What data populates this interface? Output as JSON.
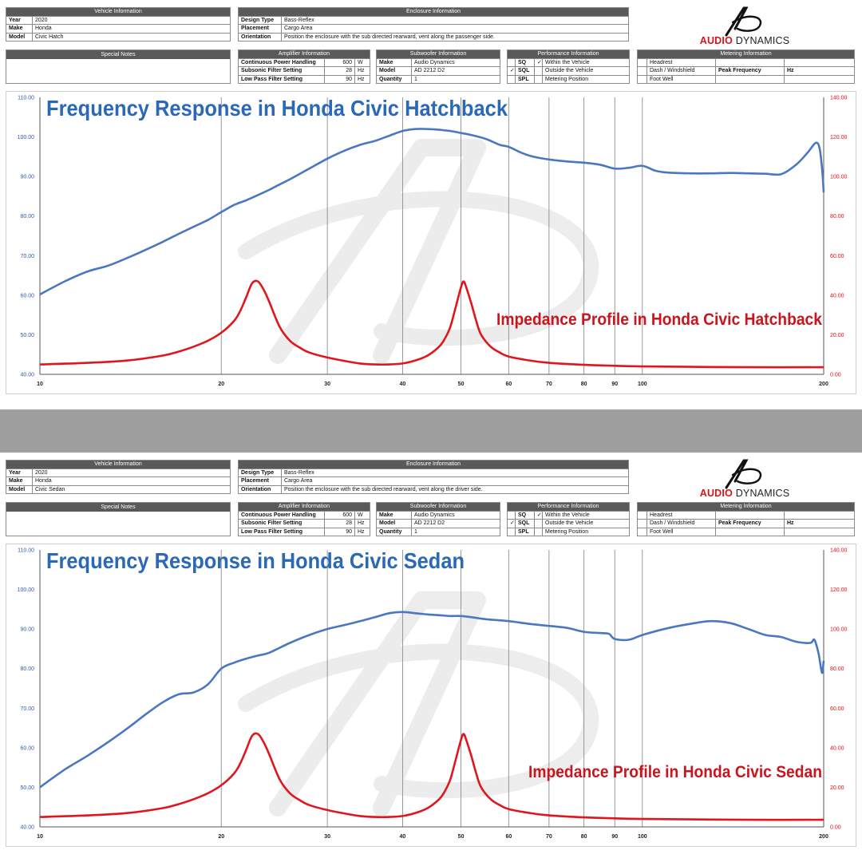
{
  "brand": {
    "logo_word_a": "AUDIO",
    "logo_word_b": "DYNAMICS",
    "logo_icon": "ad-monogram-icon"
  },
  "colors": {
    "header_bg": "#595959",
    "fr_line": "#4a78c0",
    "imp_line": "#e0161c",
    "title_blue": "#2b68b6",
    "title_red": "#c9151d",
    "left_axis": "#2b5ea5",
    "right_axis": "#d7141a"
  },
  "panels": [
    {
      "vehicle": {
        "header": "Vehicle Information",
        "rows": [
          {
            "k": "Year",
            "v": "2020"
          },
          {
            "k": "Make",
            "v": "Honda"
          },
          {
            "k": "Model",
            "v": "Civic Hatch"
          }
        ]
      },
      "enclosure": {
        "header": "Enclosure Information",
        "rows": [
          {
            "k": "Design Type",
            "v": "Bass-Reflex"
          },
          {
            "k": "Placement",
            "v": "Cargo Area"
          },
          {
            "k": "Orientation",
            "v": "Position the enclosure with the sub directed rearward, vent along the passenger side."
          }
        ]
      },
      "notes": {
        "header": "Special Notes"
      },
      "amplifier": {
        "header": "Amplifier Information",
        "rows": [
          {
            "k": "Continuous Power Handling",
            "v": "600",
            "u": "W"
          },
          {
            "k": "Subsonic Filter Setting",
            "v": "28",
            "u": "Hz"
          },
          {
            "k": "Low Pass Filter Setting",
            "v": "90",
            "u": "Hz"
          }
        ]
      },
      "subwoofer": {
        "header": "Subwoofer Information",
        "rows": [
          {
            "k": "Make",
            "v": "Audio Dynamics"
          },
          {
            "k": "Model",
            "v": "AD 2212 D2"
          },
          {
            "k": "Quantity",
            "v": "1"
          }
        ]
      },
      "performance": {
        "header": "Performance Information",
        "rows": [
          {
            "k": "SQ",
            "c": "✓",
            "v": "Within the Vehicle"
          },
          {
            "m": "✓",
            "k": "SQL",
            "c": "",
            "v": "Outside the Vehicle"
          },
          {
            "k": "SPL",
            "c": "",
            "v": "Metering Position"
          }
        ]
      },
      "metering": {
        "header": "Metering Information",
        "rows": [
          {
            "k": "Headrest"
          },
          {
            "k": "Dash / Windshield",
            "pf": "Peak Frequency",
            "u": "Hz"
          },
          {
            "k": "Foot Well"
          }
        ]
      },
      "chart_data": {
        "type": "line",
        "title": "Frequency Response in Honda Civic Hatchback",
        "annotation": "Impedance Profile in Honda Civic Hatchback",
        "x_scale": "log",
        "xlim": [
          10,
          200
        ],
        "x_ticks": [
          "10",
          "20",
          "30",
          "40",
          "50",
          "60",
          "70",
          "80",
          "90",
          "100",
          "200"
        ],
        "ylim_left": [
          40,
          110
        ],
        "y_ticks_left": [
          "40.00",
          "50.00",
          "60.00",
          "70.00",
          "80.00",
          "90.00",
          "100.00",
          "110.00"
        ],
        "ylim_right": [
          0,
          140
        ],
        "y_ticks_right": [
          "0.00",
          "20.00",
          "40.00",
          "60.00",
          "80.00",
          "100.00",
          "120.00",
          "140.00"
        ],
        "grid": "vertical",
        "series": [
          {
            "axis": "left",
            "x": [
              10,
              11,
              12,
              13,
              14,
              15,
              16,
              17,
              18,
              19,
              20,
              21,
              22,
              23,
              24,
              25,
              26,
              28,
              30,
              32,
              34,
              36,
              38,
              40,
              42,
              44,
              46,
              48,
              50,
              52,
              55,
              58,
              60,
              63,
              66,
              70,
              75,
              80,
              85,
              90,
              95,
              100,
              105,
              110,
              120,
              130,
              140,
              150,
              160,
              170,
              180,
              188,
              194,
              197,
              199,
              200
            ],
            "y": [
              60.2,
              63.5,
              66,
              67.5,
              69.5,
              71.5,
              73.5,
              75.5,
              77.3,
              79,
              81,
              82.8,
              84,
              85.3,
              86.6,
              88,
              89.3,
              92,
              94.5,
              96.5,
              98,
              99,
              100.3,
              101.5,
              102,
              102,
              101.8,
              101.5,
              101,
              100.5,
              99.5,
              98,
              97.5,
              96,
              95,
              94.3,
              93.8,
              93.5,
              93,
              92,
              92.2,
              92.7,
              91.5,
              91,
              90.8,
              90.8,
              90.9,
              90.8,
              90.7,
              90.6,
              93,
              96,
              98.5,
              97,
              91,
              86
            ]
          },
          {
            "axis": "right",
            "x": [
              10,
              12,
              14,
              16,
              17,
              18,
              19,
              20,
              21,
              21.5,
              22,
              22.5,
              23,
              23.5,
              24,
              25,
              26,
              27,
              28,
              30,
              32,
              34,
              36,
              38,
              40,
              42,
              44,
              46,
              47,
              48,
              49,
              50,
              50.5,
              51,
              52,
              53,
              54,
              56,
              58,
              60,
              65,
              70,
              80,
              90,
              100,
              120,
              150,
              200
            ],
            "y": [
              5,
              5.8,
              7,
              9.5,
              11.5,
              14,
              17,
              21,
              27,
              32,
              39,
              46,
              47,
              43,
              37,
              24,
              17,
              13.5,
              11,
              8.5,
              6.8,
              5.5,
              5,
              5,
              5.5,
              7,
              9.5,
              14,
              18,
              24,
              34,
              44,
              47,
              44,
              36,
              27,
              20,
              14,
              11,
              9,
              7,
              5.8,
              4.8,
              4.3,
              4,
              3.8,
              3.6,
              3.6
            ]
          }
        ]
      }
    },
    {
      "vehicle": {
        "header": "Vehicle Information",
        "rows": [
          {
            "k": "Year",
            "v": "2020"
          },
          {
            "k": "Make",
            "v": "Honda"
          },
          {
            "k": "Model",
            "v": "Civic Sedan"
          }
        ]
      },
      "enclosure": {
        "header": "Enclosure Information",
        "rows": [
          {
            "k": "Design Type",
            "v": "Bass-Reflex"
          },
          {
            "k": "Placement",
            "v": "Cargo Area"
          },
          {
            "k": "Orientation",
            "v": "Position the enclosure with the sub directed rearward, vent along the driver side."
          }
        ]
      },
      "notes": {
        "header": "Special Notes"
      },
      "amplifier": {
        "header": "Amplifier Information",
        "rows": [
          {
            "k": "Continuous Power Handling",
            "v": "600",
            "u": "W"
          },
          {
            "k": "Subsonic Filter Setting",
            "v": "28",
            "u": "Hz"
          },
          {
            "k": "Low Pass Filter Setting",
            "v": "90",
            "u": "Hz"
          }
        ]
      },
      "subwoofer": {
        "header": "Subwoofer Information",
        "rows": [
          {
            "k": "Make",
            "v": "Audio Dynamics"
          },
          {
            "k": "Model",
            "v": "AD 2212 D2"
          },
          {
            "k": "Quantity",
            "v": "1"
          }
        ]
      },
      "performance": {
        "header": "Performance Information",
        "rows": [
          {
            "k": "SQ",
            "c": "✓",
            "v": "Within the Vehicle"
          },
          {
            "m": "✓",
            "k": "SQL",
            "c": "",
            "v": "Outside the Vehicle"
          },
          {
            "k": "SPL",
            "c": "",
            "v": "Metering Position"
          }
        ]
      },
      "metering": {
        "header": "Metering Information",
        "rows": [
          {
            "k": "Headrest"
          },
          {
            "k": "Dash / Windshield",
            "pf": "Peak Frequency",
            "u": "Hz"
          },
          {
            "k": "Foot Well"
          }
        ]
      },
      "chart_data": {
        "type": "line",
        "title": "Frequency Response in Honda Civic Sedan",
        "annotation": "Impedance Profile in Honda Civic Sedan",
        "x_scale": "log",
        "xlim": [
          10,
          200
        ],
        "x_ticks": [
          "10",
          "20",
          "30",
          "40",
          "50",
          "60",
          "70",
          "80",
          "90",
          "100",
          "200"
        ],
        "ylim_left": [
          40,
          110
        ],
        "y_ticks_left": [
          "40.00",
          "50.00",
          "60.00",
          "70.00",
          "80.00",
          "90.00",
          "100.00",
          "110.00"
        ],
        "ylim_right": [
          0,
          140
        ],
        "y_ticks_right": [
          "0.00",
          "20.00",
          "40.00",
          "60.00",
          "80.00",
          "100.00",
          "120.00",
          "140.00"
        ],
        "grid": "vertical",
        "series": [
          {
            "axis": "left",
            "x": [
              10,
              11,
              12,
              13,
              14,
              15,
              16,
              17,
              18,
              19,
              20,
              21,
              22,
              23,
              24,
              26,
              28,
              30,
              32,
              34,
              36,
              38,
              40,
              42,
              44,
              46,
              48,
              50,
              52,
              55,
              60,
              65,
              70,
              75,
              80,
              85,
              88,
              90,
              95,
              100,
              110,
              120,
              130,
              140,
              150,
              160,
              170,
              180,
              190,
              193,
              196,
              198,
              199,
              200
            ],
            "y": [
              50,
              54.5,
              58,
              61.5,
              65,
              68.5,
              71.5,
              73.5,
              74,
              76,
              80,
              81.5,
              82.5,
              83.3,
              84,
              86.5,
              88.5,
              90,
              91,
              92,
              93,
              94,
              94.3,
              94,
              93.7,
              93.5,
              93.3,
              93.3,
              93,
              92.5,
              92,
              91.3,
              90.8,
              90.3,
              89.3,
              89,
              88.8,
              87.5,
              87.3,
              88.5,
              90.2,
              91.3,
              92,
              91.5,
              90,
              88.5,
              88,
              86.8,
              86.5,
              87.3,
              84,
              80,
              79,
              82
            ]
          },
          {
            "axis": "right",
            "x": [
              10,
              12,
              14,
              16,
              17,
              18,
              19,
              20,
              21,
              21.5,
              22,
              22.5,
              23,
              23.5,
              24,
              25,
              26,
              27,
              28,
              30,
              32,
              34,
              36,
              38,
              40,
              42,
              44,
              46,
              47,
              48,
              49,
              50,
              50.5,
              51,
              52,
              53,
              54,
              56,
              58,
              60,
              65,
              70,
              80,
              90,
              100,
              120,
              150,
              200
            ],
            "y": [
              5,
              5.8,
              7,
              9.5,
              11.5,
              14,
              17,
              21,
              27,
              32,
              39,
              46,
              47,
              43,
              37,
              24,
              17,
              13.5,
              11,
              8.5,
              6.8,
              5.5,
              5,
              5,
              5.5,
              7,
              9.5,
              14,
              18,
              24,
              34,
              44,
              47,
              44,
              36,
              27,
              20,
              14,
              11,
              9,
              7,
              5.8,
              4.8,
              4.3,
              4,
              3.8,
              3.6,
              3.6
            ]
          }
        ]
      }
    }
  ]
}
